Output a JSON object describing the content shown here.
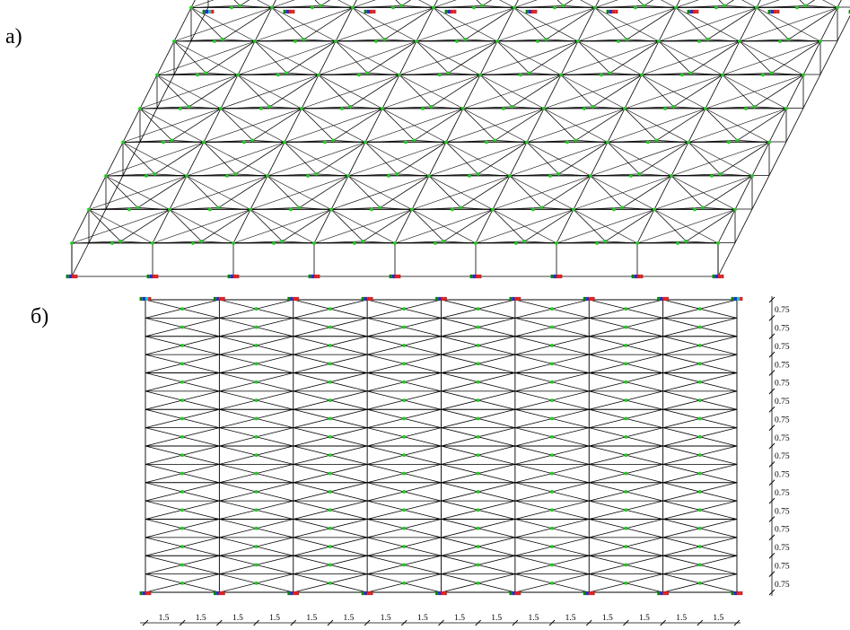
{
  "labels": {
    "a": "а)",
    "b": "б)"
  },
  "bottom_dimensions": [
    "1.5",
    "1.5",
    "1.5",
    "1.5",
    "1.5",
    "1.5",
    "1.5",
    "1.5",
    "1.5",
    "1.5",
    "1.5",
    "1.5",
    "1.5",
    "1.5",
    "1.5",
    "1.5"
  ],
  "side_dimensions": [
    "0.75",
    "0.75",
    "0.75",
    "0.75",
    "0.75",
    "0.75",
    "0.75",
    "0.75",
    "0.75",
    "0.75",
    "0.75",
    "0.75",
    "0.75",
    "0.75",
    "0.75",
    "0.75"
  ],
  "colors": {
    "member": "#000000",
    "node": "#22cc22",
    "support_red": "#e02020",
    "support_blue": "#2030d0",
    "support_green": "#108010",
    "support_cyan": "#20c0d0"
  },
  "grid": {
    "bays_x": 8,
    "bays_y": 8
  }
}
